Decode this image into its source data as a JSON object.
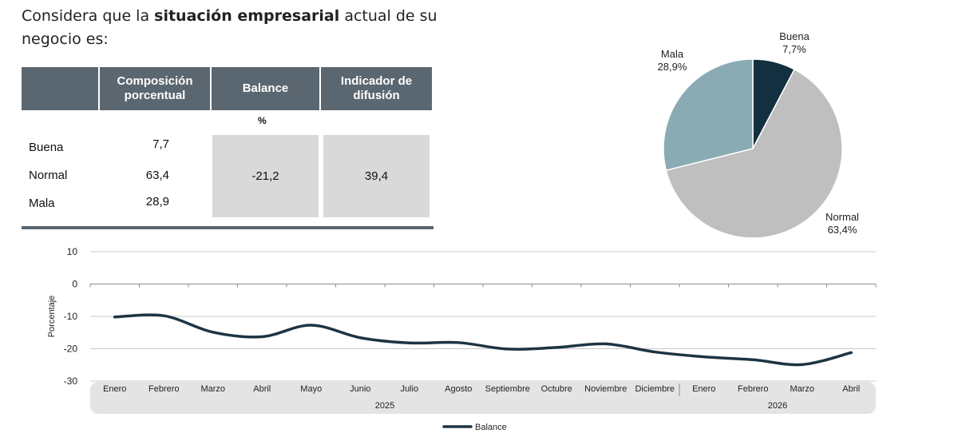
{
  "question": {
    "part1": "Considera que la ",
    "bold": "situación empresarial",
    "part2": " actual de su negocio es:"
  },
  "table": {
    "headers": [
      "Composición porcentual",
      "Balance",
      "Indicador de difusión"
    ],
    "unit": "%",
    "rows": [
      {
        "label": "Buena",
        "value": "7,7"
      },
      {
        "label": "Normal",
        "value": "63,4"
      },
      {
        "label": "Mala",
        "value": "28,9"
      }
    ],
    "balance": "-21,2",
    "indicador": "39,4"
  },
  "colors": {
    "header_bg": "#5b6770",
    "cell_bg": "#d9d9d9",
    "line": "#1d3442",
    "buena": "#12303f",
    "normal": "#bfbfbf",
    "mala": "#8aabb3",
    "axis_band": "#e4e4e4"
  },
  "chart_data": [
    {
      "type": "pie",
      "slices": [
        {
          "name": "Buena",
          "value": 7.7,
          "label": "7,7%"
        },
        {
          "name": "Normal",
          "value": 63.4,
          "label": "63,4%"
        },
        {
          "name": "Mala",
          "value": 28.9,
          "label": "28,9%"
        }
      ]
    },
    {
      "type": "line",
      "categories": [
        "Enero",
        "Febrero",
        "Marzo",
        "Abril",
        "Mayo",
        "Junio",
        "Julio",
        "Agosto",
        "Septiembre",
        "Octubre",
        "Noviembre",
        "Diciembre",
        "Enero",
        "Febrero",
        "Marzo",
        "Abril"
      ],
      "year_groups": [
        {
          "label": "2025",
          "span": 12
        },
        {
          "label": "2026",
          "span": 4
        }
      ],
      "series": [
        {
          "name": "Balance",
          "values": [
            -10.2,
            -9.8,
            -14.9,
            -16.3,
            -12.7,
            -16.6,
            -18.2,
            -18.1,
            -20.1,
            -19.6,
            -18.5,
            -21.0,
            -22.5,
            -23.4,
            -24.9,
            -21.2
          ]
        }
      ],
      "ylabel": "Porcentaje",
      "ylim": [
        -30,
        10
      ],
      "yticks": [
        10,
        0,
        -10,
        -20,
        -30
      ],
      "grid": true,
      "legend": "bottom-center"
    }
  ]
}
